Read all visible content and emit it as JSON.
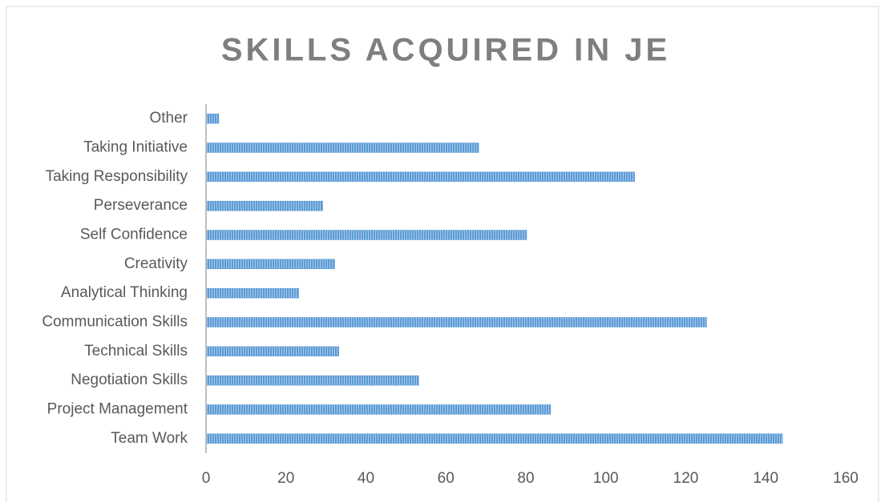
{
  "chart_data": {
    "type": "bar",
    "orientation": "horizontal",
    "title": "SKILLS ACQUIRED IN JE",
    "categories": [
      "Team Work",
      "Project Management",
      "Negotiation Skills",
      "Technical Skills",
      "Communication Skills",
      "Analytical Thinking",
      "Creativity",
      "Self Confidence",
      "Perseverance",
      "Taking Responsibility",
      "Taking Initiative",
      "Other"
    ],
    "values": [
      144,
      86,
      53,
      33,
      125,
      23,
      32,
      80,
      29,
      107,
      68,
      3
    ],
    "color": "#5b9bd5",
    "xlim": [
      0,
      160
    ],
    "xticks": [
      0,
      20,
      40,
      60,
      80,
      100,
      120,
      140,
      160
    ],
    "grid": false
  }
}
